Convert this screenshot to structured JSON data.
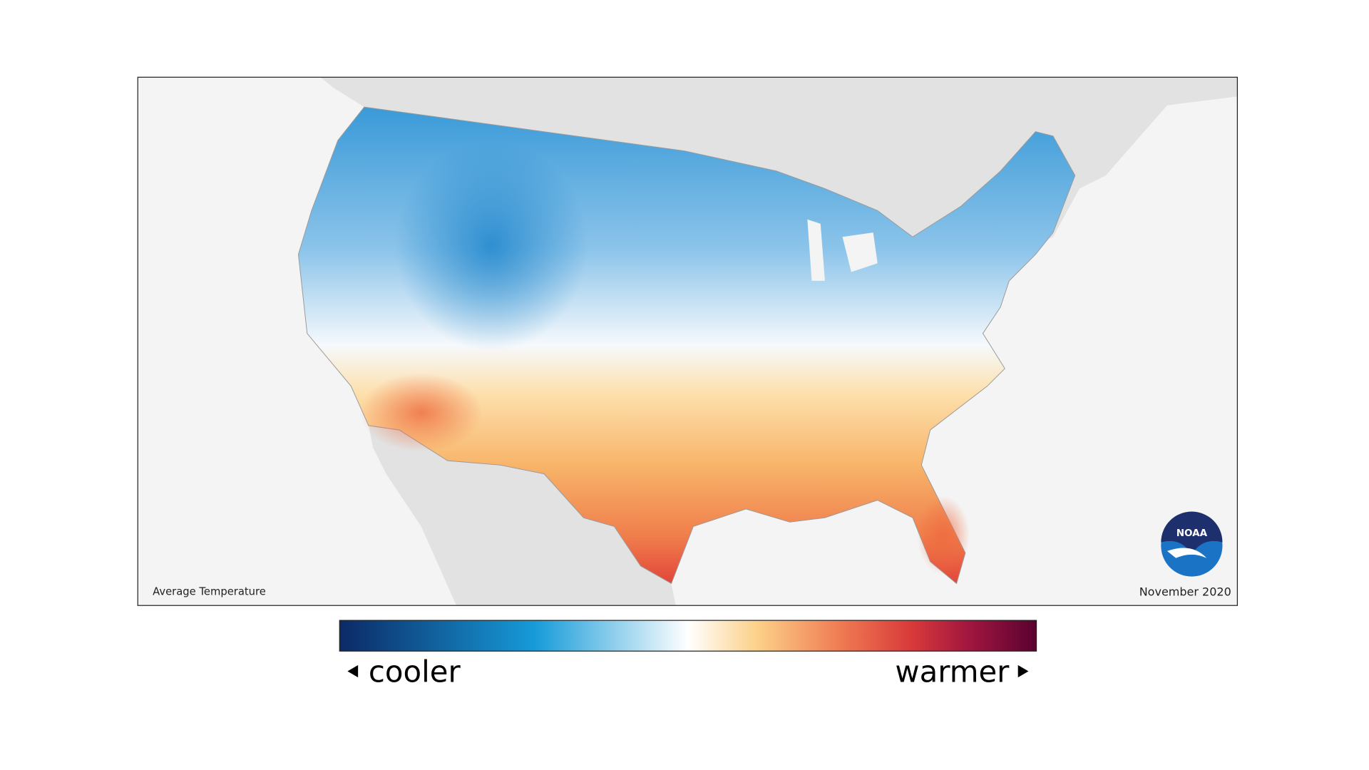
{
  "map": {
    "title": "Average Temperature",
    "date": "November 2020",
    "legend": {
      "low": "cooler",
      "high": "warmer"
    },
    "logo": "NOAA"
  }
}
